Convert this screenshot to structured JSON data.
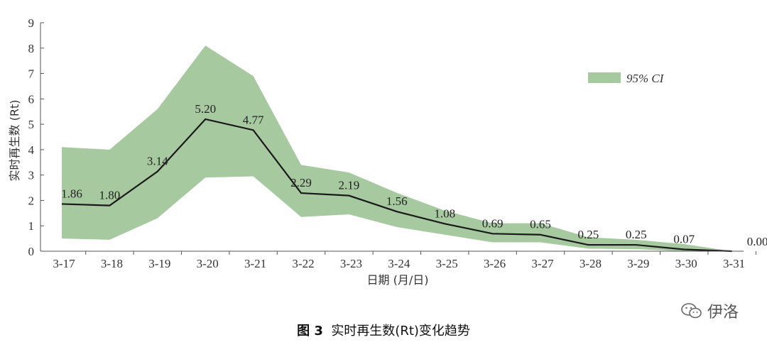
{
  "chart_data": {
    "type": "line",
    "categories": [
      "3-17",
      "3-18",
      "3-19",
      "3-20",
      "3-21",
      "3-22",
      "3-23",
      "3-24",
      "3-25",
      "3-26",
      "3-27",
      "3-28",
      "3-29",
      "3-30",
      "3-31"
    ],
    "series": [
      {
        "values": [
          1.86,
          1.8,
          3.14,
          5.2,
          4.77,
          2.29,
          2.19,
          1.56,
          1.08,
          0.69,
          0.65,
          0.25,
          0.25,
          0.07,
          0.0
        ],
        "labels": [
          "1.86",
          "1.80",
          "3.14",
          "5.20",
          "4.77",
          "2.29",
          "2.19",
          "1.56",
          "1.08",
          "0.69",
          "0.65",
          "0.25",
          "0.25",
          "0.07",
          "0.00"
        ],
        "color": "#1a1a1a"
      },
      {
        "name": "95% CI",
        "type": "band",
        "upper": [
          4.1,
          4.0,
          5.6,
          8.1,
          6.9,
          3.4,
          3.1,
          2.3,
          1.6,
          1.1,
          1.1,
          0.55,
          0.45,
          0.28,
          0.0
        ],
        "lower": [
          0.5,
          0.45,
          1.3,
          2.9,
          2.95,
          1.35,
          1.45,
          0.95,
          0.65,
          0.35,
          0.35,
          0.1,
          0.08,
          0.0,
          0.0
        ],
        "color": "#a7c9a0"
      }
    ],
    "xlabel": "日期 (月/日)",
    "ylabel": "实时再生数 (Rt)",
    "ylim": [
      0,
      9
    ],
    "yticks": [
      "0",
      "1",
      "2",
      "3",
      "4",
      "5",
      "6",
      "7",
      "8",
      "9"
    ],
    "grid": false,
    "legend_position": "top-right",
    "legend_label": "95% CI"
  },
  "caption": {
    "figure_no": "图 3",
    "text": "实时再生数(Rt)变化趋势"
  },
  "watermark": {
    "text": "伊洛",
    "icon": "wechat-icon"
  }
}
